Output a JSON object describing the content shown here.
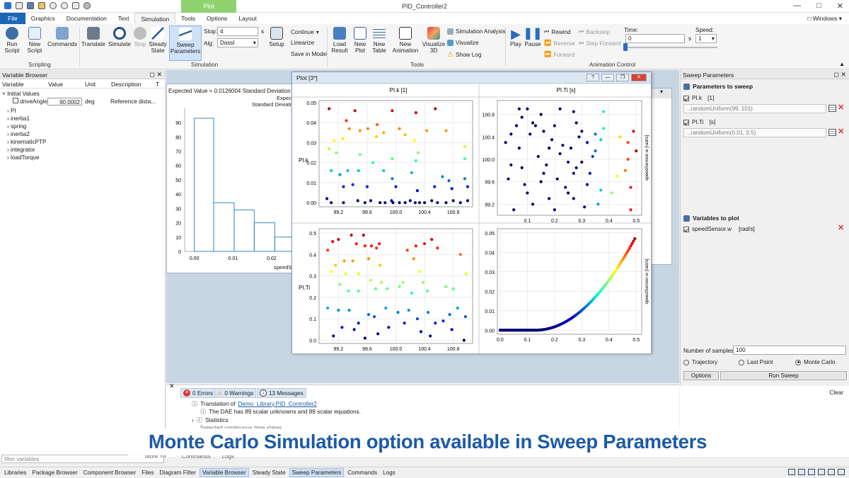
{
  "title_bar": {
    "app_title": "PID_Controller2",
    "context_tab": "Plot",
    "windows_label": "Windows"
  },
  "menu": [
    "File",
    "Graphics",
    "Documentation",
    "Text",
    "Simulation",
    "Tools",
    "Options",
    "Layout"
  ],
  "ribbon": {
    "scripting": {
      "group": "Scripting",
      "run": "Run Script",
      "new": "New Script",
      "commands": "Commands"
    },
    "simulation": {
      "group": "Simulation",
      "translate": "Translate",
      "simulate": "Simulate",
      "stop": "Stop",
      "steady": "Steady State",
      "sweep": "Sweep Parameters",
      "stop_label": "Stop:",
      "stop_value": "4",
      "stop_unit": "s",
      "alg_label": "Alg:",
      "alg_value": "Dassl",
      "setup": "Setup",
      "continue": "Continue",
      "linearize": "Linearize",
      "save_in_model": "Save in Model"
    },
    "tools": {
      "group": "Tools",
      "load_result": "Load Result",
      "new_plot": "New Plot",
      "new_table": "New Table",
      "new_animation": "New Animation",
      "visualize3d": "Visualize 3D",
      "simulation_analysis": "Simulation Analysis",
      "visualize": "Visualize",
      "show_log": "Show Log"
    },
    "animation": {
      "group": "Animation Control",
      "play": "Play",
      "pause": "Pause",
      "rewind": "Rewind",
      "reverse": "Reverse",
      "forward": "Forward",
      "backstep": "Backstep",
      "step_forward": "Step Forward",
      "time_label": "Time:",
      "time_value": "0",
      "time_unit": "s",
      "speed_label": "Speed:",
      "speed_value": "1"
    }
  },
  "variable_browser": {
    "title": "Variable Browser",
    "columns": [
      "Variable",
      "Value",
      "Unit",
      "Description",
      "T"
    ],
    "initial_values": "Initial Values",
    "drive_angle": {
      "name": "driveAngle",
      "value": "90.0002",
      "unit": "deg",
      "description": "Reference dista..."
    },
    "items": [
      "PI",
      "inertia1",
      "spring",
      "inertia2",
      "kinematicPTP",
      "integrator",
      "loadTorque"
    ],
    "filter_placeholder": "filter variables"
  },
  "histogram": {
    "header": "Expected Value = 0.0126004 Standard Deviation of Sam",
    "legend_line1": "Expected V",
    "legend_line2": "Standard Deviation",
    "xlabel": "speedSen",
    "chart_data": {
      "type": "bar",
      "x_ticks": [
        "0.00",
        "0.01",
        "0.02"
      ],
      "y_ticks": [
        "90",
        "80",
        "70",
        "60",
        "50",
        "40",
        "30",
        "20",
        "10",
        "0"
      ],
      "ylim": [
        0,
        95
      ],
      "bins": [
        {
          "x0": 0,
          "x1": 0.005,
          "v": 93
        },
        {
          "x0": 0.005,
          "x1": 0.0103,
          "v": 34
        },
        {
          "x0": 0.0103,
          "x1": 0.0155,
          "v": 29
        },
        {
          "x0": 0.0155,
          "x1": 0.0208,
          "v": 20
        },
        {
          "x0": 0.0208,
          "x1": 0.026,
          "v": 10
        }
      ]
    }
  },
  "plot_window": {
    "title": "Plot [3*]",
    "col_headers": [
      "PI.k [1]",
      "PI.Ti [s]"
    ],
    "row_labels": [
      "PI.k",
      "PI.Ti"
    ],
    "ylabel": "speedSensor.w [rad/s]"
  },
  "chart_data": [
    {
      "type": "scatter",
      "id": "k_k",
      "x_ticks": [
        "99.2",
        "99.6",
        "100.0",
        "100.4",
        "100.8"
      ],
      "y_ticks": [
        "0.05",
        "0.04",
        "0.03",
        "0.02",
        "0.01",
        "0.00"
      ],
      "xlim": [
        98.95,
        101.05
      ],
      "ylim": [
        -0.001,
        0.05
      ],
      "color_by": "speedSensor.w",
      "points": [
        [
          99.07,
          0.047
        ],
        [
          99.43,
          0.046
        ],
        [
          99.95,
          0.046
        ],
        [
          100.28,
          0.045
        ],
        [
          100.55,
          0.047
        ],
        [
          99.31,
          0.041
        ],
        [
          99.74,
          0.039
        ],
        [
          99.61,
          0.037
        ],
        [
          99.5,
          0.036
        ],
        [
          99.35,
          0.037
        ],
        [
          99.83,
          0.035
        ],
        [
          100.05,
          0.037
        ],
        [
          100.13,
          0.034
        ],
        [
          100.43,
          0.036
        ],
        [
          100.7,
          0.036
        ],
        [
          99.73,
          0.033
        ],
        [
          99.26,
          0.032
        ],
        [
          100.26,
          0.031
        ],
        [
          99.14,
          0.031
        ],
        [
          99.07,
          0.027
        ],
        [
          99.17,
          0.025
        ],
        [
          99.5,
          0.024
        ],
        [
          100.31,
          0.025
        ],
        [
          100.96,
          0.022
        ],
        [
          100.96,
          0.028
        ],
        [
          99.68,
          0.02
        ],
        [
          99.95,
          0.022
        ],
        [
          100.28,
          0.021
        ],
        [
          99.22,
          0.014
        ],
        [
          99.1,
          0.016
        ],
        [
          99.33,
          0.016
        ],
        [
          99.48,
          0.016
        ],
        [
          99.83,
          0.016
        ],
        [
          99.95,
          0.012
        ],
        [
          100.22,
          0.015
        ],
        [
          100.65,
          0.013
        ],
        [
          100.74,
          0.011
        ],
        [
          100.96,
          0.012
        ],
        [
          99.27,
          0.008
        ],
        [
          99.4,
          0.009
        ],
        [
          99.6,
          0.008
        ],
        [
          100.0,
          0.008
        ],
        [
          100.3,
          0.006
        ],
        [
          100.54,
          0.008
        ],
        [
          100.78,
          0.007
        ],
        [
          101.0,
          0.008
        ],
        [
          99.04,
          0.002
        ],
        [
          99.1,
          0.0
        ],
        [
          99.27,
          0.0
        ],
        [
          99.47,
          0.001
        ],
        [
          99.57,
          0.0
        ],
        [
          99.65,
          0.001
        ],
        [
          99.78,
          0.0
        ],
        [
          99.85,
          0.0
        ],
        [
          99.94,
          0.001
        ],
        [
          100.05,
          0.0
        ],
        [
          100.13,
          0.0
        ],
        [
          100.2,
          0.001
        ],
        [
          100.27,
          0.0
        ],
        [
          100.33,
          0.0
        ],
        [
          100.4,
          0.0
        ],
        [
          100.5,
          0.001
        ],
        [
          100.58,
          0.0
        ],
        [
          100.7,
          0.0
        ],
        [
          100.8,
          0.001
        ],
        [
          100.9,
          0.0
        ],
        [
          101.0,
          0.001
        ],
        [
          99.96,
          0.0
        ]
      ]
    },
    {
      "type": "scatter",
      "id": "k_ti",
      "x_ticks": [
        "0.1",
        "0.2",
        "0.3",
        "0.4",
        "0.5"
      ],
      "y_ticks": [
        "100.8",
        "100.4",
        "100.0",
        "99.6",
        "99.2"
      ],
      "xlim": [
        -0.005,
        0.515
      ],
      "ylim": [
        99.04,
        101.01
      ],
      "color_by": "speedSensor.w",
      "points": [
        [
          0.07,
          100.9
        ],
        [
          0.15,
          100.8
        ],
        [
          0.22,
          100.9
        ],
        [
          0.27,
          100.85
        ],
        [
          0.38,
          100.85
        ],
        [
          0.49,
          100.5
        ],
        [
          0.44,
          100.4
        ],
        [
          0.47,
          100.3
        ],
        [
          0.5,
          100.15
        ],
        [
          0.47,
          100.0
        ],
        [
          0.46,
          99.8
        ],
        [
          0.43,
          99.7
        ],
        [
          0.48,
          99.5
        ],
        [
          0.41,
          99.4
        ],
        [
          0.36,
          99.2
        ],
        [
          0.48,
          99.1
        ],
        [
          0.38,
          100.55
        ],
        [
          0.35,
          100.45
        ],
        [
          0.37,
          100.35
        ],
        [
          0.3,
          99.95
        ],
        [
          0.27,
          99.75
        ],
        [
          0.32,
          99.55
        ],
        [
          0.25,
          99.4
        ],
        [
          0.02,
          100.3
        ],
        [
          0.04,
          99.9
        ],
        [
          0.06,
          100.6
        ],
        [
          0.08,
          100.75
        ],
        [
          0.1,
          99.4
        ],
        [
          0.12,
          99.2
        ],
        [
          0.14,
          100.05
        ],
        [
          0.16,
          99.75
        ],
        [
          0.18,
          99.3
        ],
        [
          0.2,
          100.6
        ],
        [
          0.22,
          100.1
        ],
        [
          0.24,
          99.5
        ],
        [
          0.26,
          100.2
        ],
        [
          0.28,
          99.85
        ],
        [
          0.3,
          100.5
        ],
        [
          0.32,
          100.3
        ],
        [
          0.34,
          100.05
        ],
        [
          0.03,
          99.65
        ],
        [
          0.05,
          99.1
        ],
        [
          0.07,
          100.2
        ],
        [
          0.09,
          99.55
        ],
        [
          0.11,
          100.45
        ],
        [
          0.13,
          100.6
        ],
        [
          0.15,
          99.6
        ],
        [
          0.17,
          99.9
        ],
        [
          0.19,
          100.35
        ],
        [
          0.21,
          99.65
        ],
        [
          0.23,
          100.25
        ],
        [
          0.25,
          99.95
        ],
        [
          0.27,
          99.3
        ],
        [
          0.29,
          100.4
        ],
        [
          0.31,
          99.15
        ],
        [
          0.33,
          99.75
        ],
        [
          0.35,
          100.15
        ],
        [
          0.37,
          99.45
        ],
        [
          0.1,
          100.9
        ],
        [
          0.12,
          100.65
        ],
        [
          0.08,
          99.85
        ],
        [
          0.16,
          100.5
        ],
        [
          0.2,
          99.1
        ],
        [
          0.28,
          100.65
        ],
        [
          0.04,
          100.45
        ],
        [
          0.18,
          100.2
        ]
      ]
    },
    {
      "type": "scatter",
      "id": "ti_k",
      "x_ticks": [
        "99.2",
        "99.6",
        "100.0",
        "100.4",
        "100.8"
      ],
      "y_ticks": [
        "0.5",
        "0.4",
        "0.3",
        "0.2",
        "0.1",
        "0.0"
      ],
      "xlim": [
        98.95,
        101.05
      ],
      "ylim": [
        -0.005,
        0.51
      ],
      "color_by": "speedSensor.w",
      "points": [
        [
          99.38,
          0.49
        ],
        [
          99.55,
          0.49
        ],
        [
          99.2,
          0.47
        ],
        [
          99.66,
          0.44
        ],
        [
          99.77,
          0.45
        ],
        [
          99.73,
          0.43
        ],
        [
          99.57,
          0.44
        ],
        [
          99.45,
          0.45
        ],
        [
          100.28,
          0.44
        ],
        [
          100.4,
          0.45
        ],
        [
          100.16,
          0.42
        ],
        [
          99.12,
          0.46
        ],
        [
          100.5,
          0.47
        ],
        [
          100.58,
          0.43
        ],
        [
          99.05,
          0.42
        ],
        [
          99.62,
          0.38
        ],
        [
          99.4,
          0.37
        ],
        [
          99.28,
          0.37
        ],
        [
          99.16,
          0.35
        ],
        [
          100.25,
          0.38
        ],
        [
          100.9,
          0.4
        ],
        [
          99.1,
          0.32
        ],
        [
          99.3,
          0.31
        ],
        [
          99.48,
          0.31
        ],
        [
          99.78,
          0.35
        ],
        [
          100.33,
          0.32
        ],
        [
          100.98,
          0.31
        ],
        [
          99.22,
          0.26
        ],
        [
          99.65,
          0.28
        ],
        [
          99.8,
          0.27
        ],
        [
          100.38,
          0.27
        ],
        [
          100.1,
          0.27
        ],
        [
          99.34,
          0.23
        ],
        [
          99.48,
          0.23
        ],
        [
          99.72,
          0.24
        ],
        [
          99.88,
          0.24
        ],
        [
          100.05,
          0.25
        ],
        [
          100.22,
          0.22
        ],
        [
          100.44,
          0.23
        ],
        [
          100.7,
          0.25
        ],
        [
          100.8,
          0.24
        ],
        [
          99.05,
          0.15
        ],
        [
          99.2,
          0.14
        ],
        [
          99.35,
          0.14
        ],
        [
          99.48,
          0.08
        ],
        [
          99.62,
          0.12
        ],
        [
          99.7,
          0.11
        ],
        [
          99.86,
          0.15
        ],
        [
          100.03,
          0.13
        ],
        [
          100.18,
          0.14
        ],
        [
          100.3,
          0.1
        ],
        [
          100.45,
          0.13
        ],
        [
          100.55,
          0.08
        ],
        [
          100.66,
          0.09
        ],
        [
          100.75,
          0.12
        ],
        [
          100.86,
          0.15
        ],
        [
          100.97,
          0.11
        ],
        [
          99.13,
          0.02
        ],
        [
          99.25,
          0.06
        ],
        [
          99.42,
          0.05
        ],
        [
          99.57,
          0.01
        ],
        [
          99.75,
          0.03
        ],
        [
          99.9,
          0.06
        ],
        [
          100.12,
          0.08
        ],
        [
          100.35,
          0.04
        ],
        [
          100.48,
          0.02
        ],
        [
          100.78,
          0.05
        ],
        [
          100.95,
          0.0
        ]
      ]
    },
    {
      "type": "scatter",
      "id": "ti_ti",
      "x_ticks": [
        "0.0",
        "0.1",
        "0.2",
        "0.3",
        "0.4",
        "0.5"
      ],
      "y_ticks": [
        "0.05",
        "0.04",
        "0.03",
        "0.02",
        "0.01",
        "0.00"
      ],
      "xlim": [
        -0.005,
        0.515
      ],
      "ylim": [
        -0.001,
        0.051
      ],
      "color_by": "speedSensor.w",
      "curve": "quadratic",
      "curve_points": 100,
      "curve_x_range": [
        0,
        0.495
      ],
      "curve_x0": 0.13,
      "curve_max": 0.047
    }
  ],
  "sweep": {
    "title": "Sweep Parameters",
    "params_heading": "Parameters to sweep",
    "p1_name": "PI.k",
    "p1_unit": "[1]",
    "p1_expr": "...randomUniform(99, 101)",
    "p2_name": "PI.Ti",
    "p2_unit": "[s]",
    "p2_expr": "...randomUniform(0.01, 0.5)",
    "vars_heading": "Variables to plot",
    "v1_name": "speedSensor.w",
    "v1_unit": "[rad/s]",
    "samples_label": "Number of samples",
    "samples_value": "100",
    "opt_traj": "Trajectory",
    "opt_last": "Last Point",
    "opt_mc": "Monte Carlo",
    "options_btn": "Options",
    "run_btn": "Run Sweep"
  },
  "messages": {
    "errors": "0 Errors",
    "warnings": "0 Warnings",
    "messages": "13 Messages",
    "clear": "Clear",
    "line1_prefix": "Translation of",
    "line1_link": "Demo_Library.PID_Controller2",
    "line2": "The DAE has 89 scalar unknowns and 89 scalar equations.",
    "line3": "Statistics",
    "line4": "Selected continuous time states",
    "tab_more": "More >>",
    "tab_commands": "Commands",
    "tab_logs": "Logs"
  },
  "caption": "Monte Carlo Simulation option available in Sweep Parameters",
  "bottom_tabs": [
    "Libraries",
    "Package Browser",
    "Component Browser",
    "Files",
    "Diagram Filter",
    "Variable Browser",
    "Steady State",
    "Sweep Parameters",
    "Commands",
    "Logs"
  ],
  "bottom_highlight": [
    5,
    7
  ]
}
